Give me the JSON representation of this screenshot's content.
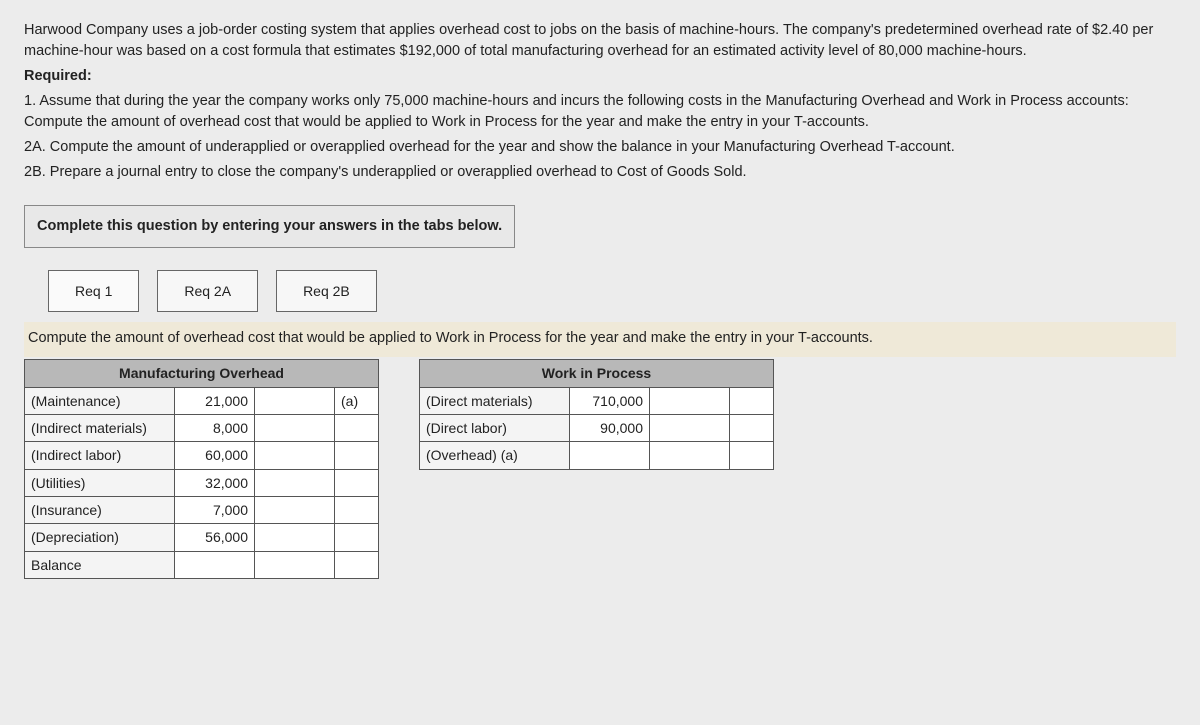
{
  "intro": {
    "p1": "Harwood Company uses a job-order costing system that applies overhead cost to jobs on the basis of machine-hours. The company's predetermined overhead rate of $2.40 per machine-hour was based on a cost formula that estimates $192,000 of total manufacturing overhead for an estimated activity level of 80,000 machine-hours.",
    "required_label": "Required:",
    "r1": "1. Assume that during the year the company works only 75,000 machine-hours and incurs the following costs in the Manufacturing Overhead and Work in Process accounts: Compute the amount of overhead cost that would be applied to Work in Process for the year and make the entry in your T-accounts.",
    "r2a": "2A. Compute the amount of underapplied or overapplied overhead for the year and show the balance in your Manufacturing Overhead T-account.",
    "r2b": "2B. Prepare a journal entry to close the company's underapplied or overapplied overhead to Cost of Goods Sold."
  },
  "instructions": "Complete this question by entering your answers in the tabs below.",
  "tabs": {
    "t1": "Req 1",
    "t2": "Req 2A",
    "t3": "Req 2B"
  },
  "prompt": "Compute the amount of overhead cost that would be applied to Work in Process for the year and make the entry in your T-accounts.",
  "moh": {
    "title": "Manufacturing Overhead",
    "rows": [
      {
        "label": "(Maintenance)",
        "debit": "21,000",
        "credit": "",
        "tag": "(a)"
      },
      {
        "label": "(Indirect materials)",
        "debit": "8,000",
        "credit": "",
        "tag": ""
      },
      {
        "label": "(Indirect labor)",
        "debit": "60,000",
        "credit": "",
        "tag": ""
      },
      {
        "label": "(Utilities)",
        "debit": "32,000",
        "credit": "",
        "tag": ""
      },
      {
        "label": "(Insurance)",
        "debit": "7,000",
        "credit": "",
        "tag": ""
      },
      {
        "label": "(Depreciation)",
        "debit": "56,000",
        "credit": "",
        "tag": ""
      }
    ],
    "balance_label": "Balance"
  },
  "wip": {
    "title": "Work in Process",
    "rows": [
      {
        "label": "(Direct materials)",
        "debit": "710,000",
        "credit": ""
      },
      {
        "label": "(Direct labor)",
        "debit": "90,000",
        "credit": ""
      },
      {
        "label": "(Overhead) (a)",
        "debit": "",
        "credit": ""
      }
    ]
  },
  "style": {
    "header_bg": "#b8b8b8",
    "prompt_bg": "#efe9d8",
    "page_bg": "#ececec",
    "border": "#555"
  }
}
